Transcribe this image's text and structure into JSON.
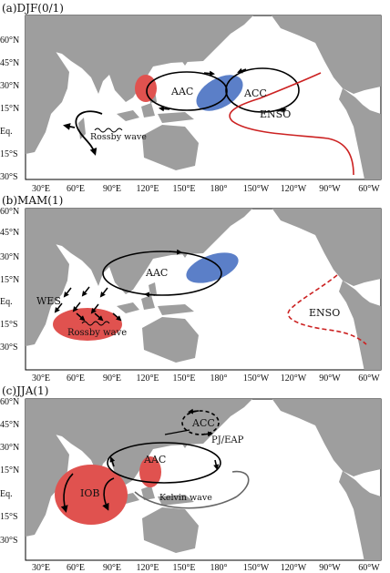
{
  "colors": {
    "land": "#9e9e9e",
    "red_anomaly": "#e0524f",
    "blue_anomaly": "#5b7fc8",
    "enso_curve": "#cc2222",
    "arrows": "#000000"
  },
  "lon_ticks": [
    "30°E",
    "60°E",
    "90°E",
    "120°E",
    "150°E",
    "180°",
    "150°W",
    "120°W",
    "90°W",
    "60°W"
  ],
  "panels": [
    {
      "title": "(a)DJF(0/1)",
      "lat_ticks": [
        "60°N",
        "45°N",
        "30°N",
        "15°N",
        "Eq.",
        "15°S",
        "30°S"
      ],
      "labels": {
        "aac": "AAC",
        "acc": "ACC",
        "enso": "ENSO",
        "rossby": "Rossby wave"
      }
    },
    {
      "title": "(b)MAM(1)",
      "lat_ticks": [
        "60°N",
        "45°N",
        "30°N",
        "15°N",
        "Eq.",
        "15°S",
        "30°S"
      ],
      "labels": {
        "aac": "AAC",
        "wes": "WES",
        "rossby": "Rossby wave",
        "enso": "ENSO"
      }
    },
    {
      "title": "(c)JJA(1)",
      "lat_ticks": [
        "60°N",
        "45°N",
        "30°N",
        "15°N",
        "Eq.",
        "15°S",
        "30°S"
      ],
      "labels": {
        "acc": "ACC",
        "pjeap": "PJ/EAP",
        "aac": "AAC",
        "iob": "IOB",
        "kelvin": "Kelvin wave"
      }
    }
  ]
}
